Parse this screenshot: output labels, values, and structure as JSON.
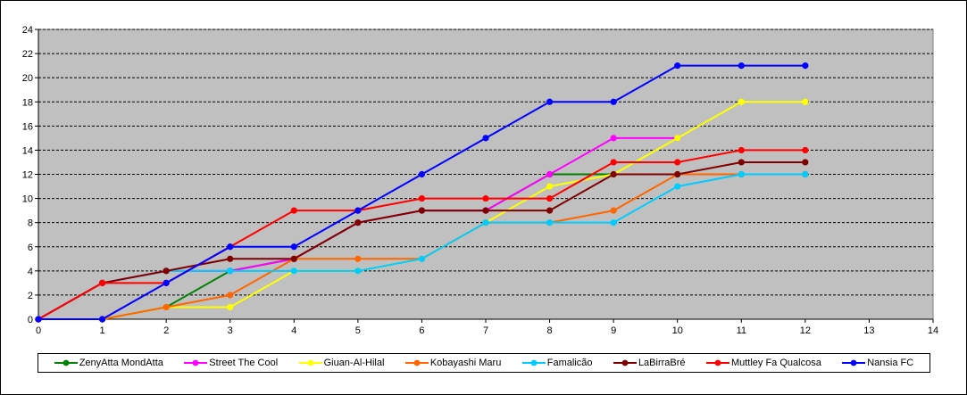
{
  "chart_data": {
    "type": "line",
    "title": "",
    "xlabel": "",
    "ylabel": "",
    "xlim": [
      0,
      14
    ],
    "ylim": [
      0,
      24
    ],
    "x_ticks": [
      0,
      1,
      2,
      3,
      4,
      5,
      6,
      7,
      8,
      9,
      10,
      11,
      12,
      13,
      14
    ],
    "y_ticks": [
      0,
      2,
      4,
      6,
      8,
      10,
      12,
      14,
      16,
      18,
      20,
      22,
      24
    ],
    "grid": "horizontal dashed",
    "plot_background": "#c0c0c0",
    "legend_placement": "bottom",
    "series": [
      {
        "name": "ZenyAtta MondAtta",
        "color": "#008000",
        "x": [
          0,
          1,
          2,
          3,
          4,
          5,
          6,
          7,
          8,
          9,
          10,
          11,
          12
        ],
        "y": [
          0,
          0,
          1,
          4,
          5,
          8,
          9,
          9,
          12,
          12,
          12,
          12,
          12
        ]
      },
      {
        "name": "Street The Cool",
        "color": "#ff00ff",
        "x": [
          0,
          1,
          2,
          3,
          4,
          5,
          6,
          7,
          8,
          9,
          10
        ],
        "y": [
          0,
          3,
          4,
          4,
          5,
          8,
          9,
          9,
          12,
          15,
          15
        ]
      },
      {
        "name": "Giuan-Al-Hilal",
        "color": "#ffff00",
        "x": [
          0,
          1,
          2,
          3,
          4,
          5,
          6,
          7,
          8,
          9,
          10,
          11,
          12
        ],
        "y": [
          0,
          0,
          1,
          1,
          4,
          4,
          5,
          8,
          11,
          12,
          15,
          18,
          18
        ]
      },
      {
        "name": "Kobayashi Maru",
        "color": "#ff6600",
        "x": [
          0,
          1,
          2,
          3,
          4,
          5,
          6,
          7,
          8,
          9,
          10,
          11,
          12
        ],
        "y": [
          0,
          0,
          1,
          2,
          5,
          5,
          5,
          8,
          8,
          9,
          12,
          12,
          12
        ]
      },
      {
        "name": "Famalicão",
        "color": "#00ccff",
        "x": [
          0,
          1,
          2,
          3,
          4,
          5,
          6,
          7,
          8,
          9,
          10,
          11,
          12
        ],
        "y": [
          0,
          3,
          4,
          4,
          4,
          4,
          5,
          8,
          8,
          8,
          11,
          12,
          12
        ]
      },
      {
        "name": "LaBirraBré",
        "color": "#800000",
        "x": [
          0,
          1,
          2,
          3,
          4,
          5,
          6,
          7,
          8,
          9,
          10,
          11,
          12
        ],
        "y": [
          0,
          3,
          4,
          5,
          5,
          8,
          9,
          9,
          9,
          12,
          12,
          13,
          13
        ]
      },
      {
        "name": "Muttley Fa Qualcosa",
        "color": "#ff0000",
        "x": [
          0,
          1,
          2,
          3,
          4,
          5,
          6,
          7,
          8,
          9,
          10,
          11,
          12
        ],
        "y": [
          0,
          3,
          3,
          6,
          9,
          9,
          10,
          10,
          10,
          13,
          13,
          14,
          14
        ]
      },
      {
        "name": "Nansia FC",
        "color": "#0000ff",
        "x": [
          0,
          1,
          2,
          3,
          4,
          5,
          6,
          7,
          8,
          9,
          10,
          11,
          12
        ],
        "y": [
          0,
          0,
          3,
          6,
          6,
          9,
          12,
          15,
          18,
          18,
          21,
          21,
          21
        ]
      }
    ]
  }
}
